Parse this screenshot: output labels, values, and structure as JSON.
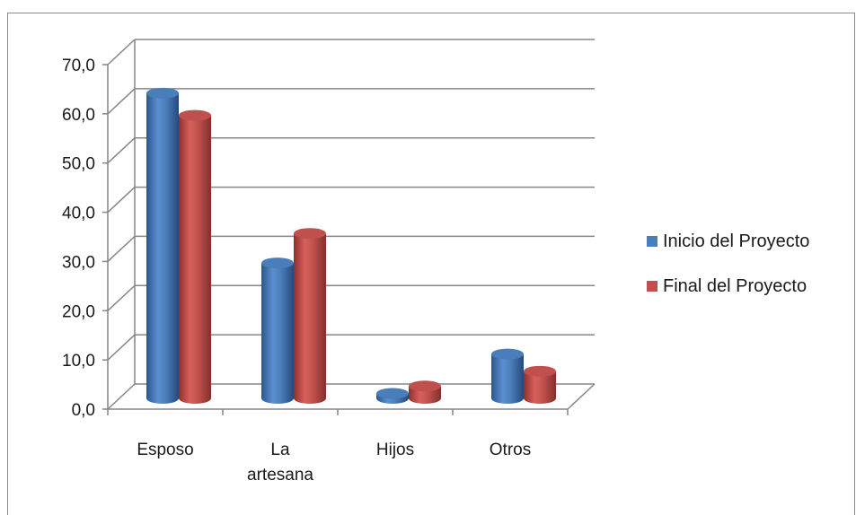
{
  "chart_data": {
    "type": "bar",
    "categories": [
      [
        "Esposo"
      ],
      [
        "La",
        "artesana"
      ],
      [
        "Hijos"
      ],
      [
        "Otros"
      ]
    ],
    "series": [
      {
        "name": "Inicio del Proyecto",
        "values": [
          62.0,
          27.5,
          1.0,
          9.0
        ],
        "color": "#4a7ebb"
      },
      {
        "name": "Final del Proyecto",
        "values": [
          57.5,
          33.5,
          2.5,
          5.5
        ],
        "color": "#c0504d"
      }
    ],
    "yticks": [
      "0,0",
      "10,0",
      "20,0",
      "30,0",
      "40,0",
      "50,0",
      "60,0",
      "70,0"
    ],
    "ylim": [
      0,
      70
    ],
    "legend_position": "right",
    "grid": true,
    "style": "3d-cylinder"
  }
}
